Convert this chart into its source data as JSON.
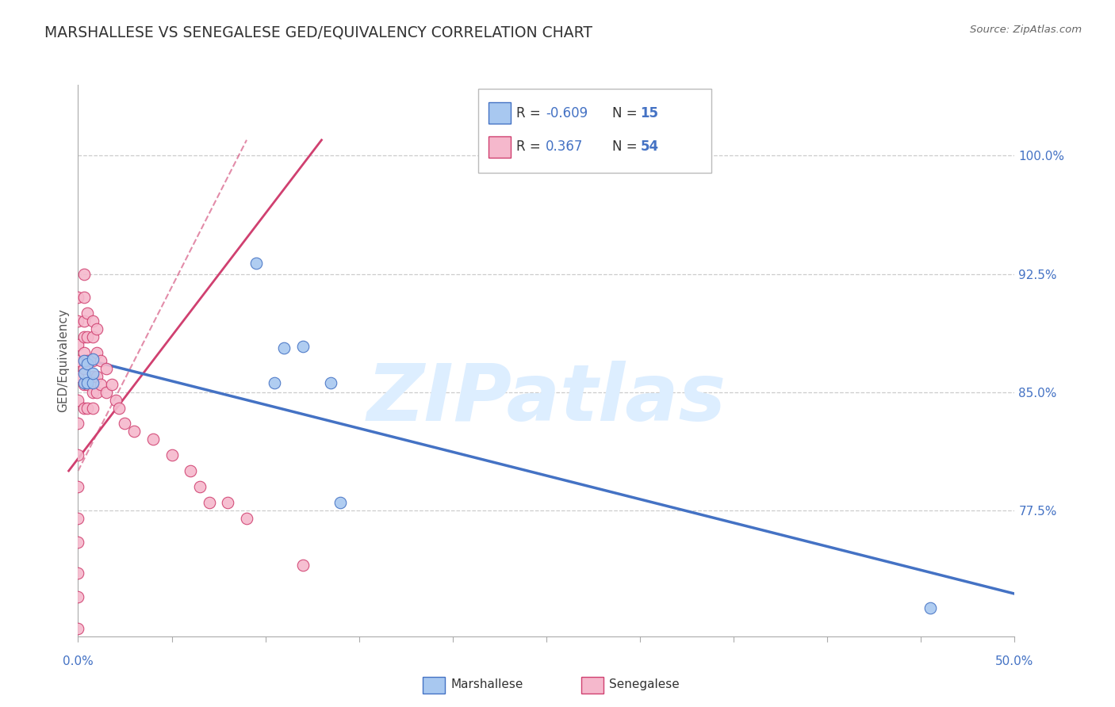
{
  "title": "MARSHALLESE VS SENEGALESE GED/EQUIVALENCY CORRELATION CHART",
  "source": "Source: ZipAtlas.com",
  "ylabel": "GED/Equivalency",
  "y_tick_labels": [
    "100.0%",
    "92.5%",
    "85.0%",
    "77.5%"
  ],
  "y_tick_values": [
    1.0,
    0.925,
    0.85,
    0.775
  ],
  "x_min": 0.0,
  "x_max": 0.5,
  "y_min": 0.695,
  "y_max": 1.045,
  "legend_r_marshallese": "-0.609",
  "legend_n_marshallese": "15",
  "legend_r_senegalese": "0.367",
  "legend_n_senegalese": "54",
  "marshallese_x": [
    0.003,
    0.003,
    0.003,
    0.005,
    0.005,
    0.008,
    0.008,
    0.008,
    0.095,
    0.105,
    0.11,
    0.12,
    0.135,
    0.14,
    0.455
  ],
  "marshallese_y": [
    0.856,
    0.862,
    0.87,
    0.856,
    0.868,
    0.856,
    0.862,
    0.871,
    0.932,
    0.856,
    0.878,
    0.879,
    0.856,
    0.78,
    0.713
  ],
  "senegalese_x": [
    0.0,
    0.0,
    0.0,
    0.0,
    0.0,
    0.0,
    0.0,
    0.0,
    0.0,
    0.0,
    0.0,
    0.0,
    0.0,
    0.0,
    0.003,
    0.003,
    0.003,
    0.003,
    0.003,
    0.003,
    0.003,
    0.003,
    0.005,
    0.005,
    0.005,
    0.005,
    0.005,
    0.008,
    0.008,
    0.008,
    0.008,
    0.008,
    0.008,
    0.01,
    0.01,
    0.01,
    0.01,
    0.012,
    0.012,
    0.015,
    0.015,
    0.018,
    0.02,
    0.022,
    0.025,
    0.03,
    0.04,
    0.05,
    0.06,
    0.065,
    0.07,
    0.08,
    0.09,
    0.12
  ],
  "senegalese_y": [
    0.7,
    0.72,
    0.735,
    0.755,
    0.77,
    0.79,
    0.81,
    0.83,
    0.845,
    0.86,
    0.87,
    0.88,
    0.895,
    0.91,
    0.84,
    0.855,
    0.865,
    0.875,
    0.885,
    0.895,
    0.91,
    0.925,
    0.84,
    0.855,
    0.87,
    0.885,
    0.9,
    0.84,
    0.85,
    0.86,
    0.87,
    0.885,
    0.895,
    0.85,
    0.86,
    0.875,
    0.89,
    0.855,
    0.87,
    0.85,
    0.865,
    0.855,
    0.845,
    0.84,
    0.83,
    0.825,
    0.82,
    0.81,
    0.8,
    0.79,
    0.78,
    0.78,
    0.77,
    0.74
  ],
  "marshallese_trendline_x": [
    0.0,
    0.5
  ],
  "marshallese_trendline_y": [
    0.872,
    0.722
  ],
  "senegalese_trendline_x": [
    -0.005,
    0.13
  ],
  "senegalese_trendline_y": [
    0.8,
    1.01
  ],
  "color_marshallese": "#a8c8f0",
  "color_senegalese": "#f5b8cc",
  "color_marshallese_line": "#4472C4",
  "color_senegalese_line": "#D04070",
  "color_title": "#333333",
  "color_axis_labels": "#4472C4",
  "watermark_color": "#ddeeff",
  "background_color": "#ffffff",
  "grid_color": "#cccccc"
}
